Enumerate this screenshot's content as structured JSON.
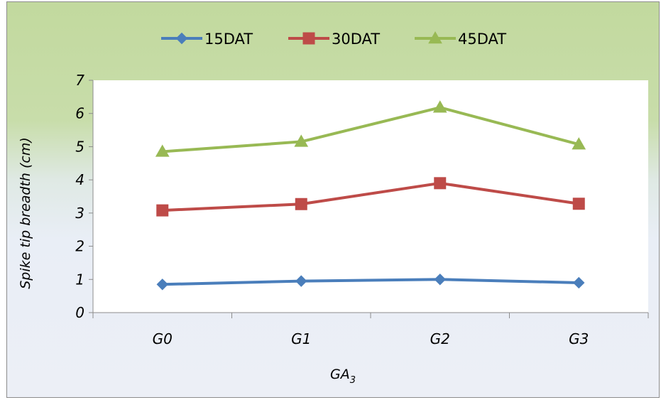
{
  "chart_data": {
    "type": "line",
    "categories": [
      "G0",
      "G1",
      "G2",
      "G3"
    ],
    "series": [
      {
        "name": "15DAT",
        "values": [
          0.85,
          0.95,
          1.0,
          0.9
        ],
        "color": "#4a7ebb",
        "marker": "diamond"
      },
      {
        "name": "30DAT",
        "values": [
          3.08,
          3.27,
          3.9,
          3.28
        ],
        "color": "#be4b48",
        "marker": "square"
      },
      {
        "name": "45DAT",
        "values": [
          4.85,
          5.15,
          6.18,
          5.07
        ],
        "color": "#98b954",
        "marker": "triangle"
      }
    ],
    "ylim": [
      0,
      7
    ],
    "yticks": [
      "0",
      "1",
      "2",
      "3",
      "4",
      "5",
      "6",
      "7"
    ],
    "xlabel": "GA",
    "xlabel_subscript": "3",
    "ylabel": "Spike tip breadth (cm)",
    "legend_position": "top",
    "grid": false
  }
}
